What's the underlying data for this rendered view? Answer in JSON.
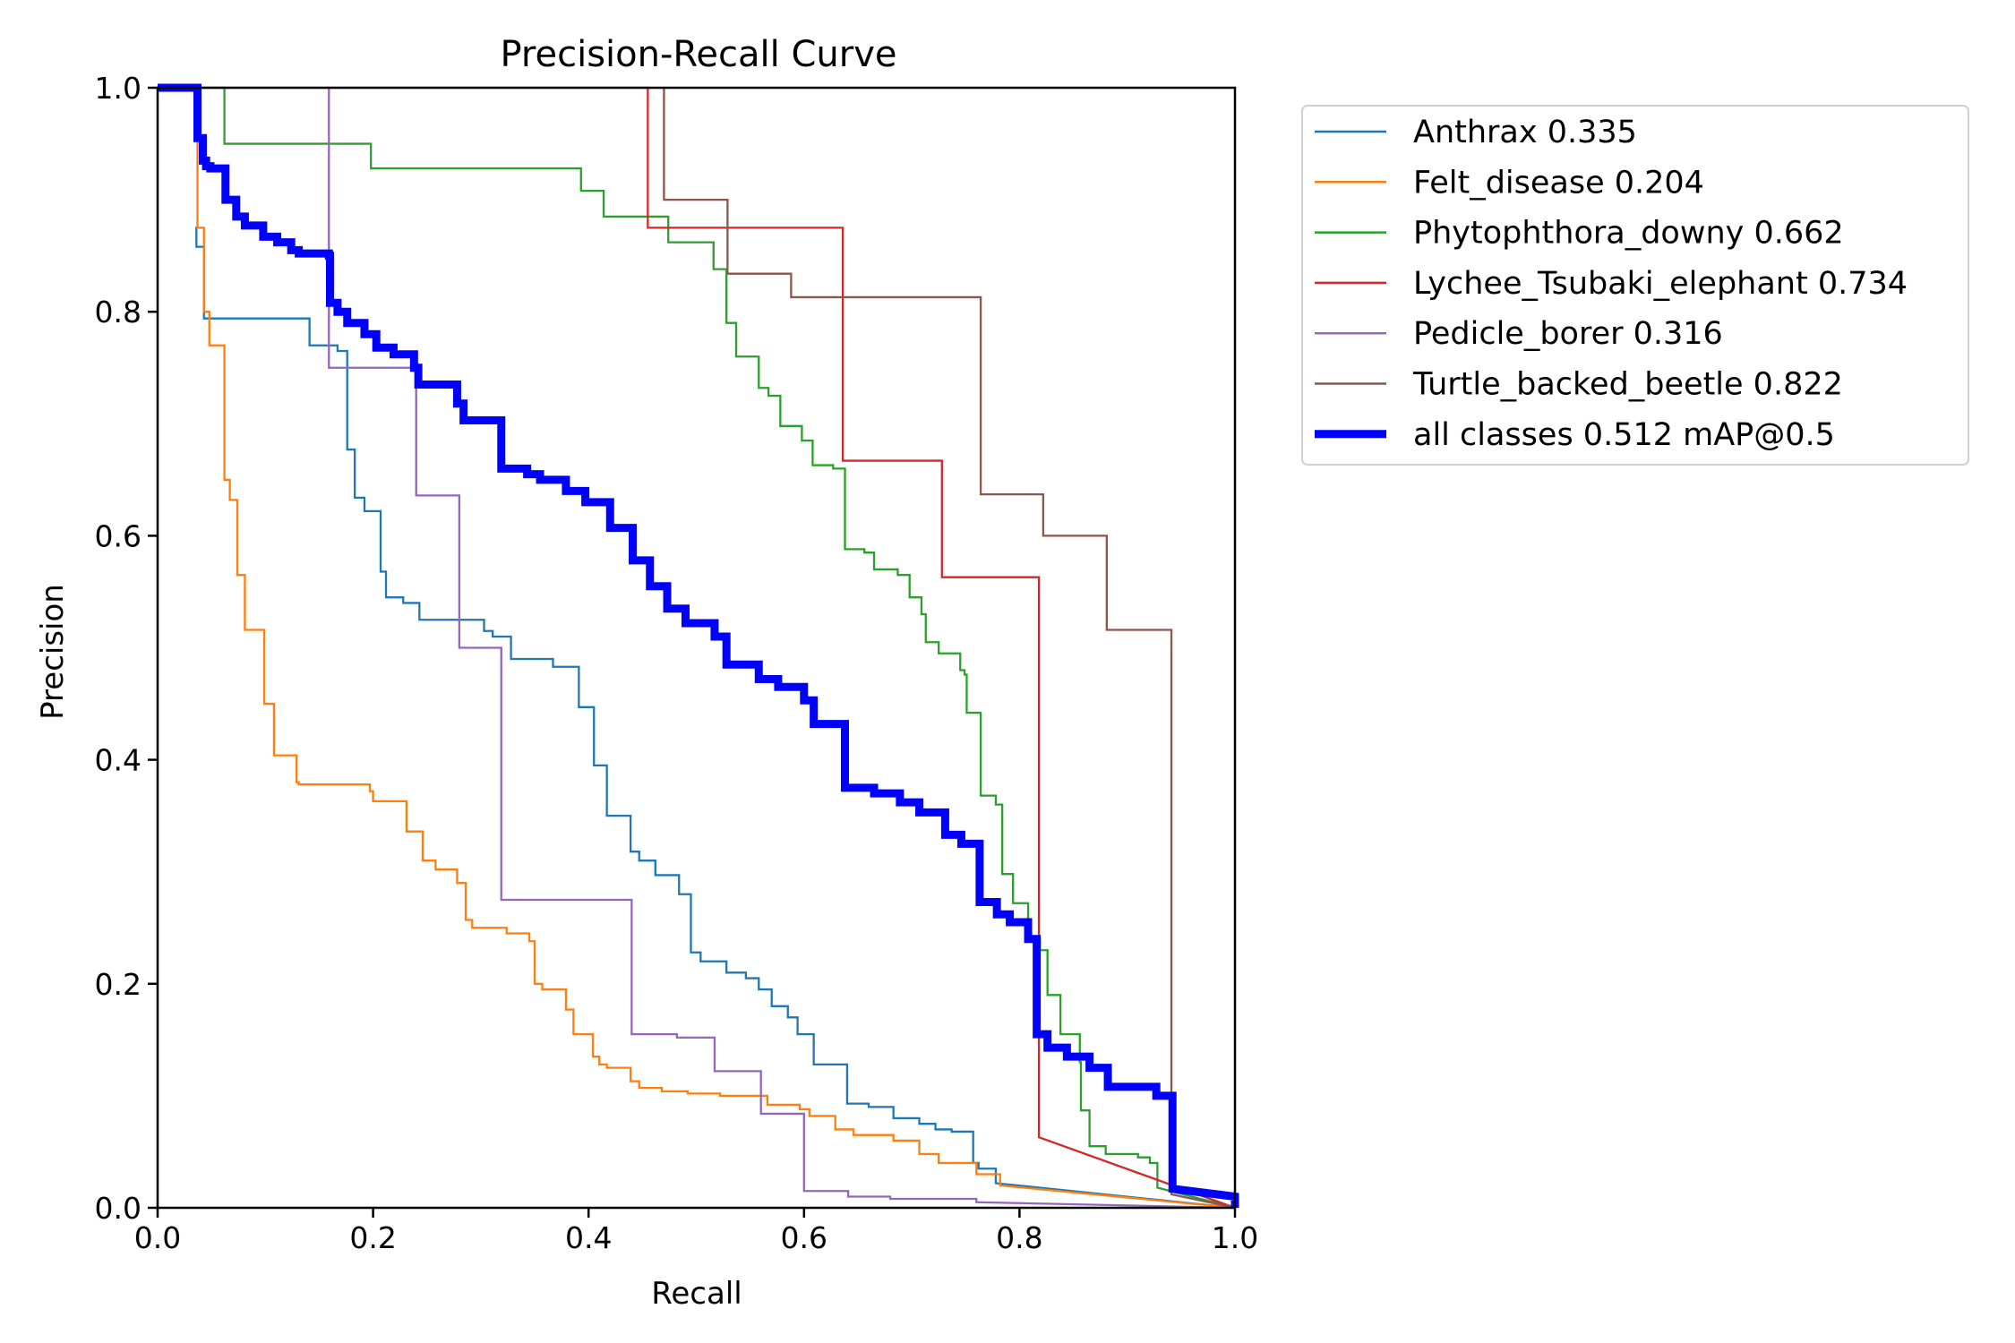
{
  "chart_data": {
    "type": "line",
    "title": "Precision-Recall Curve",
    "xlabel": "Recall",
    "ylabel": "Precision",
    "xlim": [
      0,
      1
    ],
    "ylim": [
      0,
      1
    ],
    "xticks": [
      "0.0",
      "0.2",
      "0.4",
      "0.6",
      "0.8",
      "1.0"
    ],
    "yticks": [
      "0.0",
      "0.2",
      "0.4",
      "0.6",
      "0.8",
      "1.0"
    ],
    "grid": false,
    "legend_position": "outside-top-right",
    "series": [
      {
        "name": "Anthrax 0.335",
        "color": "#1f77b4",
        "width": "thin",
        "points": [
          [
            0.035,
            0.875
          ],
          [
            0.036,
            0.858
          ],
          [
            0.043,
            0.794
          ],
          [
            0.141,
            0.77
          ],
          [
            0.167,
            0.765
          ],
          [
            0.176,
            0.677
          ],
          [
            0.183,
            0.634
          ],
          [
            0.192,
            0.622
          ],
          [
            0.207,
            0.568
          ],
          [
            0.212,
            0.545
          ],
          [
            0.228,
            0.54
          ],
          [
            0.243,
            0.525
          ],
          [
            0.303,
            0.515
          ],
          [
            0.311,
            0.51
          ],
          [
            0.328,
            0.49
          ],
          [
            0.367,
            0.483
          ],
          [
            0.391,
            0.447
          ],
          [
            0.405,
            0.395
          ],
          [
            0.417,
            0.35
          ],
          [
            0.439,
            0.318
          ],
          [
            0.447,
            0.31
          ],
          [
            0.462,
            0.297
          ],
          [
            0.484,
            0.28
          ],
          [
            0.495,
            0.228
          ],
          [
            0.504,
            0.22
          ],
          [
            0.528,
            0.21
          ],
          [
            0.546,
            0.205
          ],
          [
            0.558,
            0.195
          ],
          [
            0.57,
            0.18
          ],
          [
            0.585,
            0.17
          ],
          [
            0.594,
            0.155
          ],
          [
            0.609,
            0.128
          ],
          [
            0.64,
            0.093
          ],
          [
            0.66,
            0.09
          ],
          [
            0.683,
            0.08
          ],
          [
            0.707,
            0.075
          ],
          [
            0.722,
            0.07
          ],
          [
            0.737,
            0.068
          ],
          [
            0.757,
            0.04
          ],
          [
            0.762,
            0.035
          ],
          [
            0.778,
            0.022
          ],
          [
            1.0,
            0.0
          ]
        ]
      },
      {
        "name": "Felt_disease 0.204",
        "color": "#ff7f0e",
        "width": "thin",
        "points": [
          [
            0.037,
            0.96
          ],
          [
            0.037,
            0.875
          ],
          [
            0.043,
            0.8
          ],
          [
            0.048,
            0.77
          ],
          [
            0.062,
            0.65
          ],
          [
            0.067,
            0.632
          ],
          [
            0.074,
            0.565
          ],
          [
            0.081,
            0.516
          ],
          [
            0.099,
            0.45
          ],
          [
            0.108,
            0.404
          ],
          [
            0.129,
            0.38
          ],
          [
            0.131,
            0.378
          ],
          [
            0.197,
            0.372
          ],
          [
            0.2,
            0.363
          ],
          [
            0.231,
            0.336
          ],
          [
            0.246,
            0.31
          ],
          [
            0.258,
            0.302
          ],
          [
            0.278,
            0.29
          ],
          [
            0.286,
            0.257
          ],
          [
            0.292,
            0.25
          ],
          [
            0.324,
            0.245
          ],
          [
            0.345,
            0.238
          ],
          [
            0.35,
            0.2
          ],
          [
            0.357,
            0.195
          ],
          [
            0.379,
            0.177
          ],
          [
            0.386,
            0.155
          ],
          [
            0.404,
            0.135
          ],
          [
            0.41,
            0.128
          ],
          [
            0.417,
            0.125
          ],
          [
            0.439,
            0.113
          ],
          [
            0.447,
            0.107
          ],
          [
            0.468,
            0.104
          ],
          [
            0.492,
            0.102
          ],
          [
            0.522,
            0.1
          ],
          [
            0.566,
            0.092
          ],
          [
            0.596,
            0.088
          ],
          [
            0.605,
            0.082
          ],
          [
            0.629,
            0.07
          ],
          [
            0.646,
            0.065
          ],
          [
            0.683,
            0.06
          ],
          [
            0.707,
            0.048
          ],
          [
            0.725,
            0.04
          ],
          [
            0.76,
            0.03
          ],
          [
            0.782,
            0.02
          ],
          [
            1.0,
            0.0
          ]
        ]
      },
      {
        "name": "Phytophthora_downy 0.662",
        "color": "#2ca02c",
        "width": "thin",
        "points": [
          [
            0.0,
            1.0
          ],
          [
            0.062,
            0.95
          ],
          [
            0.198,
            0.928
          ],
          [
            0.393,
            0.908
          ],
          [
            0.414,
            0.885
          ],
          [
            0.474,
            0.862
          ],
          [
            0.516,
            0.838
          ],
          [
            0.528,
            0.79
          ],
          [
            0.537,
            0.76
          ],
          [
            0.558,
            0.732
          ],
          [
            0.567,
            0.725
          ],
          [
            0.578,
            0.698
          ],
          [
            0.598,
            0.685
          ],
          [
            0.608,
            0.663
          ],
          [
            0.627,
            0.66
          ],
          [
            0.638,
            0.588
          ],
          [
            0.656,
            0.585
          ],
          [
            0.665,
            0.57
          ],
          [
            0.687,
            0.565
          ],
          [
            0.698,
            0.545
          ],
          [
            0.709,
            0.53
          ],
          [
            0.713,
            0.505
          ],
          [
            0.725,
            0.495
          ],
          [
            0.745,
            0.48
          ],
          [
            0.749,
            0.476
          ],
          [
            0.751,
            0.442
          ],
          [
            0.764,
            0.368
          ],
          [
            0.778,
            0.36
          ],
          [
            0.784,
            0.298
          ],
          [
            0.794,
            0.272
          ],
          [
            0.808,
            0.24
          ],
          [
            0.819,
            0.23
          ],
          [
            0.826,
            0.19
          ],
          [
            0.838,
            0.155
          ],
          [
            0.856,
            0.13
          ],
          [
            0.857,
            0.087
          ],
          [
            0.865,
            0.055
          ],
          [
            0.88,
            0.048
          ],
          [
            0.91,
            0.045
          ],
          [
            0.921,
            0.04
          ],
          [
            0.928,
            0.018
          ],
          [
            1.0,
            0.0
          ]
        ]
      },
      {
        "name": "Lychee_Tsubaki_elephant 0.734",
        "color": "#d62728",
        "width": "thin",
        "points": [
          [
            0.0,
            1.0
          ],
          [
            0.455,
            0.875
          ],
          [
            0.636,
            0.667
          ],
          [
            0.728,
            0.563
          ],
          [
            0.818,
            0.063
          ],
          [
            1.0,
            0.0
          ]
        ]
      },
      {
        "name": "Pedicle_borer 0.316",
        "color": "#9467bd",
        "width": "thin",
        "points": [
          [
            0.159,
            1.0
          ],
          [
            0.159,
            0.75
          ],
          [
            0.24,
            0.636
          ],
          [
            0.28,
            0.5
          ],
          [
            0.319,
            0.275
          ],
          [
            0.44,
            0.155
          ],
          [
            0.482,
            0.152
          ],
          [
            0.517,
            0.122
          ],
          [
            0.56,
            0.084
          ],
          [
            0.6,
            0.015
          ],
          [
            0.641,
            0.01
          ],
          [
            0.68,
            0.008
          ],
          [
            0.76,
            0.005
          ],
          [
            1.0,
            0.0
          ]
        ]
      },
      {
        "name": "Turtle_backed_beetle 0.822",
        "color": "#8c564b",
        "width": "thin",
        "points": [
          [
            0.47,
            1.0
          ],
          [
            0.47,
            0.9
          ],
          [
            0.529,
            0.834
          ],
          [
            0.588,
            0.813
          ],
          [
            0.764,
            0.637
          ],
          [
            0.822,
            0.6
          ],
          [
            0.881,
            0.516
          ],
          [
            0.941,
            0.012
          ],
          [
            1.0,
            0.0
          ]
        ]
      },
      {
        "name": "all classes 0.512 mAP@0.5",
        "color": "#0000ff",
        "width": "thick",
        "points": [
          [
            0.0,
            1.0
          ],
          [
            0.037,
            0.955
          ],
          [
            0.042,
            0.935
          ],
          [
            0.045,
            0.93
          ],
          [
            0.049,
            0.928
          ],
          [
            0.063,
            0.9
          ],
          [
            0.073,
            0.885
          ],
          [
            0.081,
            0.877
          ],
          [
            0.098,
            0.867
          ],
          [
            0.111,
            0.862
          ],
          [
            0.124,
            0.855
          ],
          [
            0.131,
            0.852
          ],
          [
            0.159,
            0.85
          ],
          [
            0.16,
            0.808
          ],
          [
            0.167,
            0.8
          ],
          [
            0.176,
            0.79
          ],
          [
            0.192,
            0.78
          ],
          [
            0.203,
            0.768
          ],
          [
            0.219,
            0.762
          ],
          [
            0.238,
            0.75
          ],
          [
            0.242,
            0.735
          ],
          [
            0.278,
            0.718
          ],
          [
            0.284,
            0.703
          ],
          [
            0.319,
            0.66
          ],
          [
            0.343,
            0.655
          ],
          [
            0.355,
            0.65
          ],
          [
            0.379,
            0.64
          ],
          [
            0.397,
            0.63
          ],
          [
            0.42,
            0.607
          ],
          [
            0.441,
            0.578
          ],
          [
            0.457,
            0.555
          ],
          [
            0.473,
            0.535
          ],
          [
            0.49,
            0.522
          ],
          [
            0.517,
            0.51
          ],
          [
            0.528,
            0.485
          ],
          [
            0.558,
            0.472
          ],
          [
            0.576,
            0.465
          ],
          [
            0.6,
            0.453
          ],
          [
            0.609,
            0.432
          ],
          [
            0.638,
            0.375
          ],
          [
            0.665,
            0.37
          ],
          [
            0.689,
            0.362
          ],
          [
            0.707,
            0.353
          ],
          [
            0.731,
            0.333
          ],
          [
            0.746,
            0.325
          ],
          [
            0.763,
            0.273
          ],
          [
            0.779,
            0.262
          ],
          [
            0.791,
            0.255
          ],
          [
            0.808,
            0.24
          ],
          [
            0.816,
            0.155
          ],
          [
            0.826,
            0.143
          ],
          [
            0.844,
            0.135
          ],
          [
            0.865,
            0.125
          ],
          [
            0.882,
            0.108
          ],
          [
            0.927,
            0.1
          ],
          [
            0.942,
            0.017
          ],
          [
            1.0,
            0.01
          ]
        ]
      }
    ]
  }
}
